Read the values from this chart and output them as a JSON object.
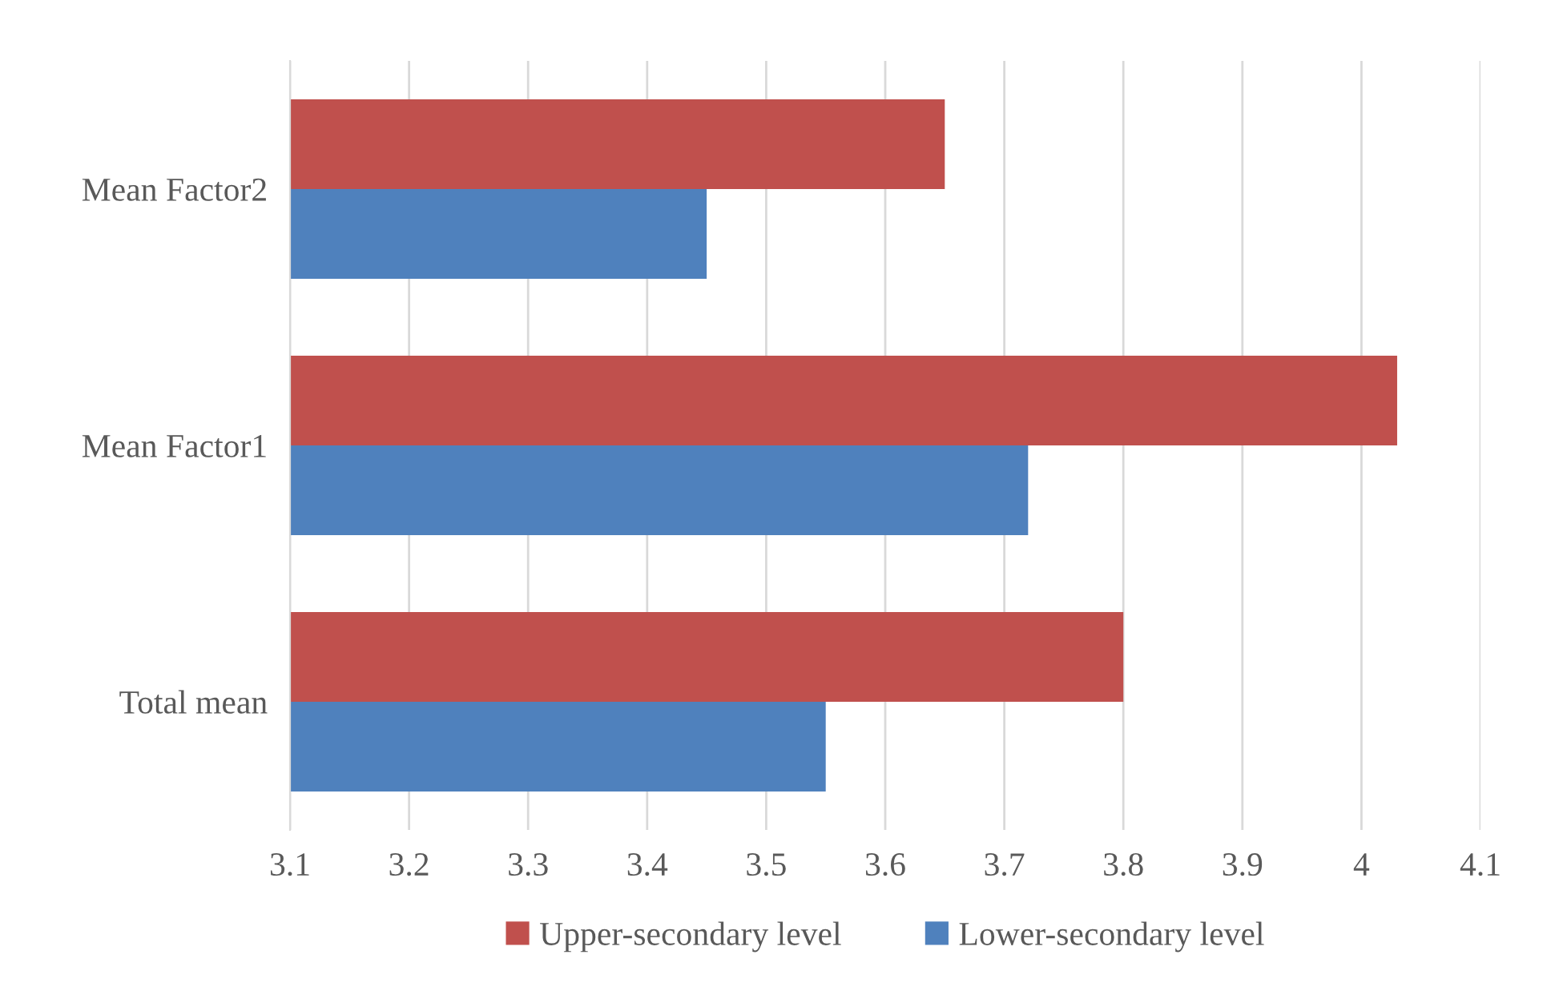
{
  "chart_data": {
    "type": "bar",
    "orientation": "horizontal",
    "categories": [
      "Mean Factor2",
      "Mean Factor1",
      "Total mean"
    ],
    "series": [
      {
        "name": "Upper-secondary level",
        "color": "#c0504d",
        "values": [
          3.65,
          4.03,
          3.8
        ]
      },
      {
        "name": "Lower-secondary level",
        "color": "#4f81bd",
        "values": [
          3.45,
          3.72,
          3.55
        ]
      }
    ],
    "xlim": [
      3.1,
      4.1
    ],
    "xticks": [
      3.1,
      3.2,
      3.3,
      3.4,
      3.5,
      3.6,
      3.7,
      3.8,
      3.9,
      4,
      4.1
    ],
    "grid": "x",
    "legend": "bottom"
  }
}
